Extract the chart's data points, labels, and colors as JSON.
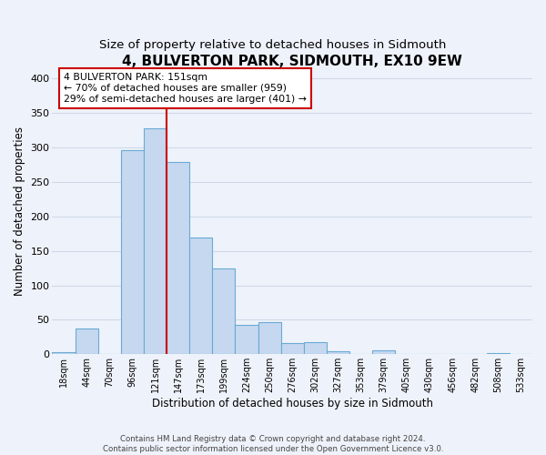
{
  "title": "4, BULVERTON PARK, SIDMOUTH, EX10 9EW",
  "subtitle": "Size of property relative to detached houses in Sidmouth",
  "xlabel": "Distribution of detached houses by size in Sidmouth",
  "ylabel": "Number of detached properties",
  "bar_labels": [
    "18sqm",
    "44sqm",
    "70sqm",
    "96sqm",
    "121sqm",
    "147sqm",
    "173sqm",
    "199sqm",
    "224sqm",
    "250sqm",
    "276sqm",
    "302sqm",
    "327sqm",
    "353sqm",
    "379sqm",
    "405sqm",
    "430sqm",
    "456sqm",
    "482sqm",
    "508sqm",
    "533sqm"
  ],
  "bar_heights": [
    3,
    37,
    0,
    296,
    328,
    279,
    169,
    124,
    42,
    46,
    16,
    17,
    5,
    0,
    6,
    0,
    0,
    0,
    0,
    2,
    0
  ],
  "bar_color": "#c5d8f0",
  "bar_edge_color": "#6aaad4",
  "vline_label_idx": 5,
  "vline_color": "#cc0000",
  "annotation_box_text": "4 BULVERTON PARK: 151sqm\n← 70% of detached houses are smaller (959)\n29% of semi-detached houses are larger (401) →",
  "annotation_box_color": "#cc0000",
  "ylim": [
    0,
    415
  ],
  "yticks": [
    0,
    50,
    100,
    150,
    200,
    250,
    300,
    350,
    400
  ],
  "footer1": "Contains HM Land Registry data © Crown copyright and database right 2024.",
  "footer2": "Contains public sector information licensed under the Open Government Licence v3.0.",
  "background_color": "#eef2fa",
  "plot_bg_color": "#eef2fa",
  "grid_color": "#d0d8e8",
  "title_fontsize": 11,
  "subtitle_fontsize": 9.5,
  "xlabel_fontsize": 8.5,
  "ylabel_fontsize": 8.5
}
